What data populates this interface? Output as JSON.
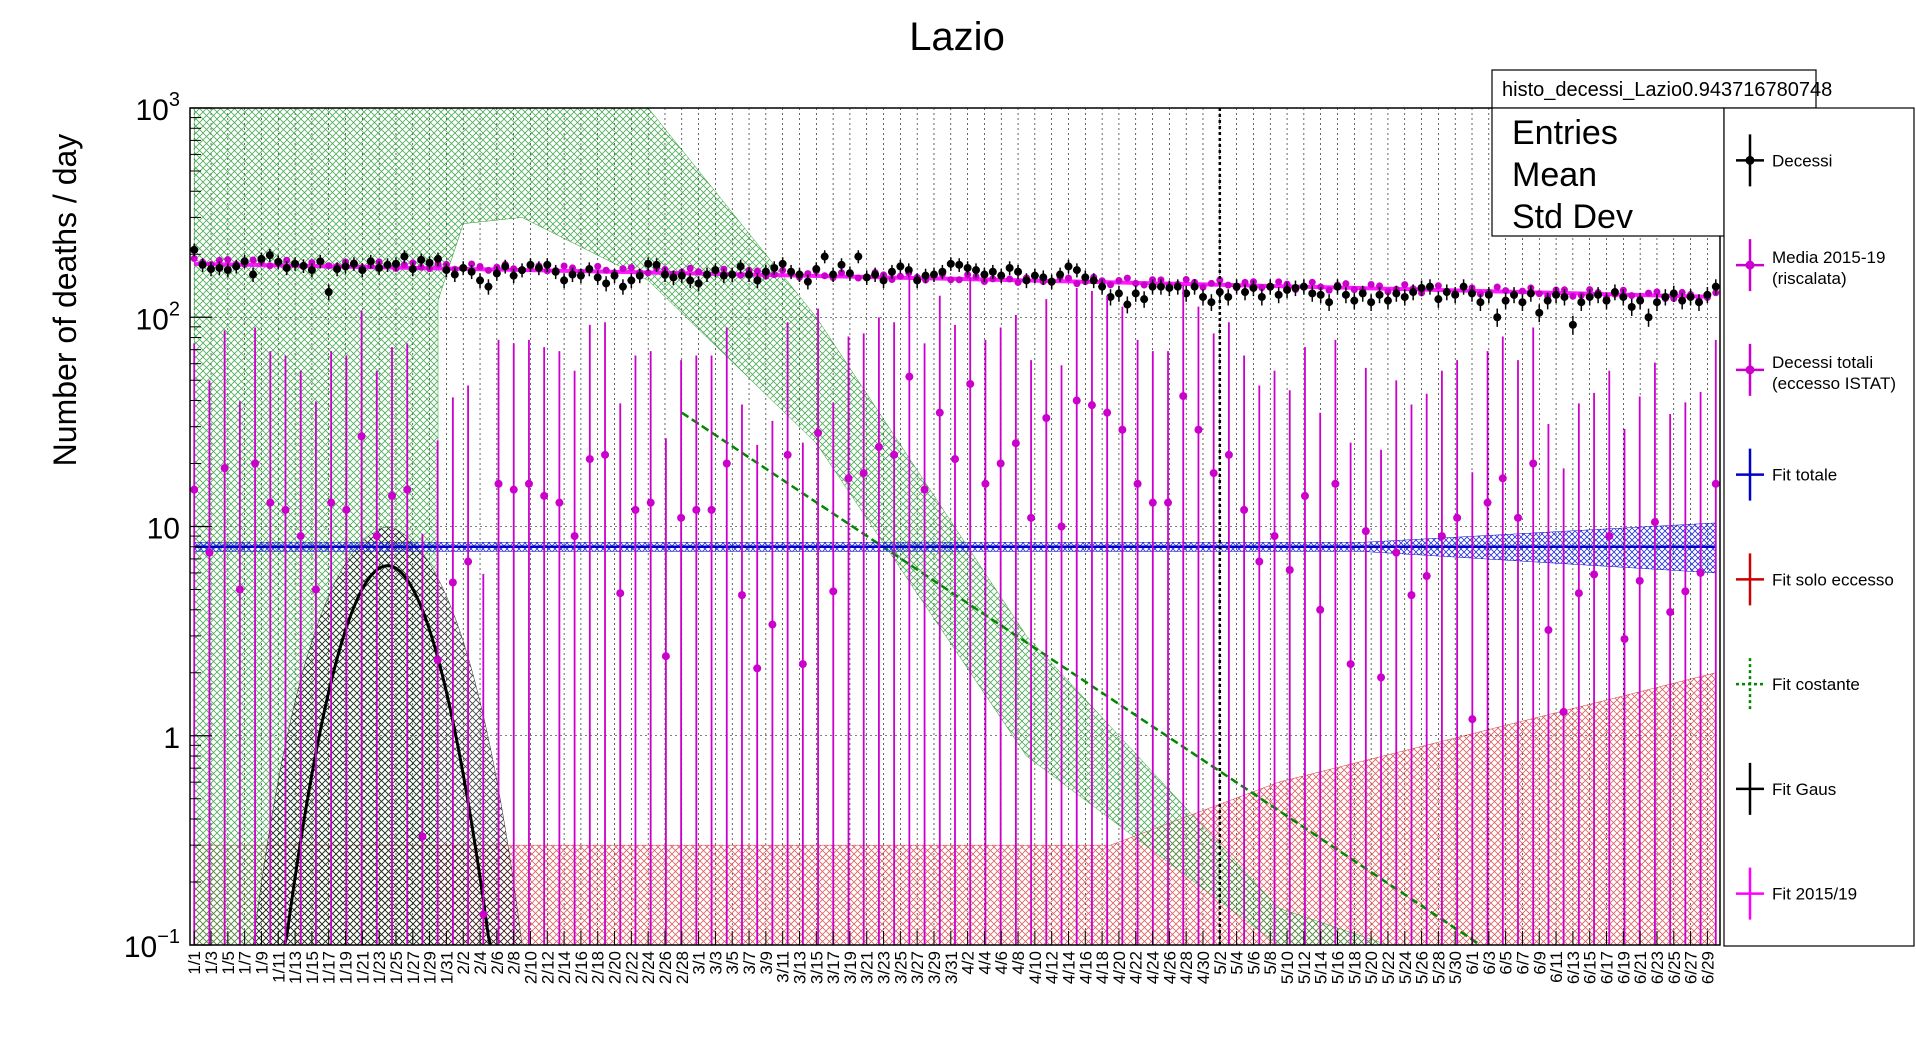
{
  "chart_data": {
    "type": "scatter",
    "title": "Lazio",
    "xlabel": "",
    "ylabel": "Number of deaths / day",
    "y_scale": "log",
    "ylim": [
      0.1,
      1000
    ],
    "y_ticks": [
      {
        "value": 1000,
        "base": "10",
        "exp": "3"
      },
      {
        "value": 100,
        "base": "10",
        "exp": "2"
      },
      {
        "value": 10,
        "base": "10",
        "exp": ""
      },
      {
        "value": 1,
        "base": "1",
        "exp": ""
      },
      {
        "value": 0.1,
        "base": "10",
        "exp": "−1"
      }
    ],
    "x_range_days": [
      1,
      182
    ],
    "x_tick_labels": [
      "1/1",
      "1/3",
      "1/5",
      "1/7",
      "1/9",
      "1/11",
      "1/13",
      "1/15",
      "1/17",
      "1/19",
      "1/21",
      "1/23",
      "1/25",
      "1/27",
      "1/29",
      "1/31",
      "2/2",
      "2/4",
      "2/6",
      "2/8",
      "2/10",
      "2/12",
      "2/14",
      "2/16",
      "2/18",
      "2/20",
      "2/22",
      "2/24",
      "2/26",
      "2/28",
      "3/1",
      "3/3",
      "3/5",
      "3/7",
      "3/9",
      "3/11",
      "3/13",
      "3/15",
      "3/17",
      "3/19",
      "3/21",
      "3/23",
      "3/25",
      "3/27",
      "3/29",
      "3/31",
      "4/2",
      "4/4",
      "4/6",
      "4/8",
      "4/10",
      "4/12",
      "4/14",
      "4/16",
      "4/18",
      "4/20",
      "4/22",
      "4/24",
      "4/26",
      "4/28",
      "4/30",
      "5/2",
      "5/4",
      "5/6",
      "5/8",
      "5/10",
      "5/12",
      "5/14",
      "5/16",
      "5/18",
      "5/20",
      "5/22",
      "5/24",
      "5/26",
      "5/28",
      "5/30",
      "6/1",
      "6/3",
      "6/5",
      "6/7",
      "6/9",
      "6/11",
      "6/13",
      "6/15",
      "6/17",
      "6/19",
      "6/21",
      "6/23",
      "6/25",
      "6/27",
      "6/29"
    ],
    "vertical_marker_label": "5/2",
    "grid": true,
    "stats_box": {
      "title": "histo_decessi_Lazio0.943716780748",
      "rows": [
        "Entries",
        "Mean",
        "Std Dev"
      ]
    },
    "legend_placement": "right",
    "series": [
      {
        "name": "Decessi",
        "color": "#000000",
        "style": "points-errorbars",
        "approx_level": "~180 in January decreasing to ~125 in June",
        "points": [
          [
            1,
            210
          ],
          [
            2,
            178
          ],
          [
            3,
            170
          ],
          [
            4,
            172
          ],
          [
            5,
            168
          ],
          [
            6,
            175
          ],
          [
            7,
            185
          ],
          [
            8,
            160
          ],
          [
            9,
            190
          ],
          [
            10,
            198
          ],
          [
            11,
            184
          ],
          [
            12,
            172
          ],
          [
            13,
            180
          ],
          [
            14,
            176
          ],
          [
            15,
            168
          ],
          [
            16,
            185
          ],
          [
            17,
            132
          ],
          [
            18,
            170
          ],
          [
            19,
            175
          ],
          [
            20,
            180
          ],
          [
            21,
            168
          ],
          [
            22,
            185
          ],
          [
            23,
            172
          ],
          [
            24,
            178
          ],
          [
            25,
            180
          ],
          [
            26,
            195
          ],
          [
            27,
            170
          ],
          [
            28,
            188
          ],
          [
            29,
            182
          ],
          [
            30,
            190
          ],
          [
            31,
            168
          ],
          [
            32,
            160
          ],
          [
            33,
            172
          ],
          [
            34,
            165
          ],
          [
            35,
            150
          ],
          [
            36,
            140
          ],
          [
            37,
            162
          ],
          [
            38,
            175
          ],
          [
            39,
            158
          ],
          [
            40,
            168
          ],
          [
            41,
            178
          ],
          [
            42,
            172
          ],
          [
            43,
            178
          ],
          [
            44,
            165
          ],
          [
            45,
            150
          ],
          [
            46,
            160
          ],
          [
            47,
            158
          ],
          [
            48,
            170
          ],
          [
            49,
            155
          ],
          [
            50,
            145
          ],
          [
            51,
            158
          ],
          [
            52,
            140
          ],
          [
            53,
            150
          ],
          [
            54,
            158
          ],
          [
            55,
            180
          ],
          [
            56,
            178
          ],
          [
            57,
            160
          ],
          [
            58,
            155
          ],
          [
            59,
            158
          ],
          [
            60,
            150
          ],
          [
            61,
            145
          ],
          [
            62,
            160
          ],
          [
            63,
            168
          ],
          [
            64,
            158
          ],
          [
            65,
            160
          ],
          [
            66,
            175
          ],
          [
            67,
            160
          ],
          [
            68,
            150
          ],
          [
            69,
            165
          ],
          [
            70,
            172
          ],
          [
            71,
            180
          ],
          [
            72,
            165
          ],
          [
            73,
            160
          ],
          [
            74,
            148
          ],
          [
            75,
            170
          ],
          [
            76,
            195
          ],
          [
            77,
            160
          ],
          [
            78,
            178
          ],
          [
            79,
            162
          ],
          [
            80,
            195
          ],
          [
            81,
            155
          ],
          [
            82,
            160
          ],
          [
            83,
            150
          ],
          [
            84,
            165
          ],
          [
            85,
            175
          ],
          [
            86,
            168
          ],
          [
            87,
            150
          ],
          [
            88,
            158
          ],
          [
            89,
            160
          ],
          [
            90,
            165
          ],
          [
            91,
            180
          ],
          [
            92,
            178
          ],
          [
            93,
            172
          ],
          [
            94,
            168
          ],
          [
            95,
            160
          ],
          [
            96,
            165
          ],
          [
            97,
            158
          ],
          [
            98,
            172
          ],
          [
            99,
            165
          ],
          [
            100,
            150
          ],
          [
            101,
            158
          ],
          [
            102,
            155
          ],
          [
            103,
            148
          ],
          [
            104,
            160
          ],
          [
            105,
            175
          ],
          [
            106,
            168
          ],
          [
            107,
            155
          ],
          [
            108,
            150
          ],
          [
            109,
            140
          ],
          [
            110,
            125
          ],
          [
            111,
            130
          ],
          [
            112,
            115
          ],
          [
            113,
            130
          ],
          [
            114,
            122
          ],
          [
            115,
            140
          ],
          [
            116,
            140
          ],
          [
            117,
            138
          ],
          [
            118,
            140
          ],
          [
            119,
            130
          ],
          [
            120,
            140
          ],
          [
            121,
            125
          ],
          [
            122,
            118
          ],
          [
            123,
            132
          ],
          [
            124,
            125
          ],
          [
            125,
            140
          ],
          [
            126,
            132
          ],
          [
            127,
            138
          ],
          [
            128,
            125
          ],
          [
            129,
            140
          ],
          [
            130,
            128
          ],
          [
            131,
            135
          ],
          [
            132,
            138
          ],
          [
            133,
            140
          ],
          [
            134,
            130
          ],
          [
            135,
            128
          ],
          [
            136,
            118
          ],
          [
            137,
            140
          ],
          [
            138,
            128
          ],
          [
            139,
            120
          ],
          [
            140,
            130
          ],
          [
            141,
            118
          ],
          [
            142,
            128
          ],
          [
            143,
            120
          ],
          [
            144,
            130
          ],
          [
            145,
            125
          ],
          [
            146,
            132
          ],
          [
            147,
            138
          ],
          [
            148,
            140
          ],
          [
            149,
            122
          ],
          [
            150,
            132
          ],
          [
            151,
            128
          ],
          [
            152,
            140
          ],
          [
            153,
            130
          ],
          [
            154,
            118
          ],
          [
            155,
            128
          ],
          [
            156,
            100
          ],
          [
            157,
            120
          ],
          [
            158,
            128
          ],
          [
            159,
            118
          ],
          [
            160,
            130
          ],
          [
            161,
            105
          ],
          [
            162,
            120
          ],
          [
            163,
            128
          ],
          [
            164,
            125
          ],
          [
            165,
            92
          ],
          [
            166,
            118
          ],
          [
            167,
            125
          ],
          [
            168,
            128
          ],
          [
            169,
            120
          ],
          [
            170,
            132
          ],
          [
            171,
            125
          ],
          [
            172,
            112
          ],
          [
            173,
            120
          ],
          [
            174,
            100
          ],
          [
            175,
            118
          ],
          [
            176,
            125
          ],
          [
            177,
            130
          ],
          [
            178,
            120
          ],
          [
            179,
            125
          ],
          [
            180,
            118
          ],
          [
            181,
            128
          ],
          [
            182,
            140
          ]
        ]
      },
      {
        "name": "Media 2015-19 (riscalata)",
        "color": "#cc00cc",
        "style": "points",
        "start": 185,
        "end": 125
      },
      {
        "name": "Decessi totali (eccesso ISTAT)",
        "color": "#cc00cc",
        "style": "points-errorbars",
        "points": [
          [
            3,
            15
          ],
          [
            4,
            7.5
          ],
          [
            5,
            19
          ],
          [
            6,
            5
          ],
          [
            7,
            20
          ],
          [
            8,
            13
          ],
          [
            9,
            12
          ],
          [
            10,
            9
          ],
          [
            11,
            5
          ],
          [
            12,
            13
          ],
          [
            13,
            12
          ],
          [
            14,
            27
          ],
          [
            15,
            9
          ],
          [
            16,
            14
          ],
          [
            17,
            15
          ],
          [
            18,
            0.33
          ],
          [
            19,
            2.3
          ],
          [
            20,
            5.4
          ],
          [
            21,
            6.8
          ],
          [
            22,
            0.14
          ],
          [
            23,
            16
          ],
          [
            24,
            15
          ],
          [
            25,
            16
          ],
          [
            26,
            14
          ],
          [
            27,
            13
          ],
          [
            28,
            9
          ],
          [
            29,
            21
          ],
          [
            30,
            22
          ],
          [
            31,
            4.8
          ],
          [
            32,
            12
          ],
          [
            33,
            13
          ],
          [
            34,
            2.4
          ],
          [
            35,
            11
          ],
          [
            36,
            12
          ],
          [
            37,
            12
          ],
          [
            38,
            20
          ],
          [
            39,
            4.7
          ],
          [
            40,
            2.1
          ],
          [
            41,
            3.4
          ],
          [
            42,
            22
          ],
          [
            43,
            2.2
          ],
          [
            44,
            28
          ],
          [
            45,
            4.9
          ],
          [
            46,
            17
          ],
          [
            47,
            18
          ],
          [
            48,
            24
          ],
          [
            49,
            22
          ],
          [
            50,
            52
          ],
          [
            51,
            15
          ],
          [
            52,
            35
          ],
          [
            53,
            21
          ],
          [
            54,
            48
          ],
          [
            55,
            16
          ],
          [
            56,
            20
          ],
          [
            57,
            25
          ],
          [
            58,
            11
          ],
          [
            59,
            33
          ],
          [
            60,
            10
          ],
          [
            61,
            40
          ],
          [
            62,
            38
          ],
          [
            63,
            35
          ],
          [
            64,
            29
          ],
          [
            65,
            16
          ],
          [
            66,
            13
          ],
          [
            67,
            13
          ],
          [
            68,
            42
          ],
          [
            69,
            29
          ],
          [
            70,
            18
          ],
          [
            71,
            22
          ],
          [
            72,
            12
          ],
          [
            73,
            6.8
          ],
          [
            74,
            9
          ],
          [
            75,
            6.2
          ],
          [
            76,
            14
          ],
          [
            77,
            4
          ],
          [
            78,
            16
          ],
          [
            79,
            2.2
          ],
          [
            80,
            9.5
          ],
          [
            81,
            1.9
          ],
          [
            82,
            7.5
          ],
          [
            83,
            4.7
          ],
          [
            84,
            5.8
          ],
          [
            85,
            9
          ],
          [
            86,
            11
          ],
          [
            87,
            1.2
          ],
          [
            88,
            13
          ],
          [
            89,
            17
          ],
          [
            90,
            11
          ],
          [
            91,
            20
          ],
          [
            92,
            3.2
          ],
          [
            93,
            1.3
          ],
          [
            94,
            4.8
          ],
          [
            95,
            5.9
          ],
          [
            96,
            9
          ],
          [
            97,
            2.9
          ],
          [
            98,
            5.5
          ],
          [
            99,
            10.5
          ],
          [
            100,
            3.9
          ],
          [
            101,
            4.9
          ],
          [
            102,
            6
          ],
          [
            103,
            16
          ]
        ]
      },
      {
        "name": "Fit totale",
        "color": "#0000cc",
        "style": "line-band",
        "value": 8
      },
      {
        "name": "Fit solo eccesso",
        "color": "#cc0000",
        "style": "band",
        "value": 0.2
      },
      {
        "name": "Fit costante",
        "color": "#008800",
        "style": "dashed-line-band",
        "from": [
          59,
          35
        ],
        "to": [
          154,
          0.1
        ]
      },
      {
        "name": "Fit Gaus",
        "color": "#000000",
        "style": "line-band",
        "peak": 6.5,
        "peak_day": 24
      },
      {
        "name": "Fit 2015/19",
        "color": "#ff00ff",
        "style": "line-band",
        "start": 180,
        "end": 125
      }
    ]
  }
}
